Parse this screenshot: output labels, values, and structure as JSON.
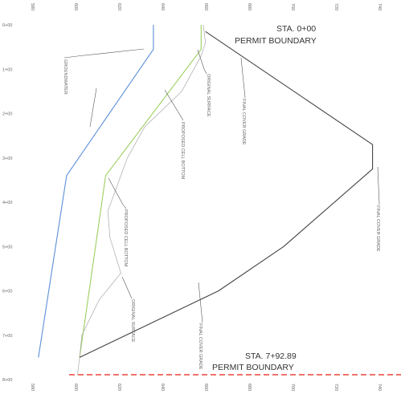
{
  "chart_data": {
    "type": "line",
    "orientation": "rotated-90",
    "elevation_ticks": [
      "580",
      "600",
      "620",
      "640",
      "660",
      "680",
      "700",
      "720",
      "740"
    ],
    "station_ticks": [
      "0+00",
      "1+00",
      "2+00",
      "3+00",
      "4+00",
      "5+00",
      "6+00",
      "7+00",
      "8+00"
    ],
    "elevation_range": [
      580,
      740
    ],
    "station_range": [
      0,
      800
    ],
    "series": [
      {
        "key": "groundwater",
        "color": "#5b8ed8",
        "points": [
          [
            0,
            637
          ],
          [
            55,
            637
          ],
          [
            340,
            597
          ],
          [
            750,
            584
          ]
        ]
      },
      {
        "key": "cell_bottom",
        "color": "#9ccf5e",
        "points": [
          [
            0,
            659
          ],
          [
            55,
            659
          ],
          [
            340,
            615
          ],
          [
            750,
            603
          ]
        ]
      },
      {
        "key": "original_surface",
        "color": "#aaaaaa",
        "points": [
          [
            0,
            660
          ],
          [
            40,
            661
          ],
          [
            70,
            659
          ],
          [
            150,
            650
          ],
          [
            230,
            633
          ],
          [
            300,
            625
          ],
          [
            420,
            616
          ],
          [
            480,
            617
          ],
          [
            560,
            622
          ],
          [
            620,
            612
          ],
          [
            700,
            604
          ],
          [
            750,
            603
          ],
          [
            790,
            602
          ]
        ]
      },
      {
        "key": "final_cover_grade",
        "color": "#444444",
        "points": [
          [
            15,
            661
          ],
          [
            270,
            738
          ],
          [
            325,
            738
          ],
          [
            500,
            697
          ],
          [
            600,
            667
          ],
          [
            750,
            603
          ]
        ]
      }
    ],
    "permit_boundary_color": "#e8453c"
  },
  "annotations": {
    "sta_top": "STA. 0+00",
    "permit_top": "PERMIT BOUNDARY",
    "sta_bottom": "STA. 7+92.89",
    "permit_bottom": "PERMIT BOUNDARY",
    "groundwater": "GROUNDWATER",
    "original_surface_1": "ORIGINAL SURFACE",
    "final_cover_1": "FINAL COVER GRADE",
    "cell_bottom_1": "PROPOSED CELL BOTTOM",
    "final_cover_2": "FINAL COVER GRADE",
    "cell_bottom_2": "PROPOSED CELL BOTTOM",
    "original_surface_2": "ORIGINAL SURFACE",
    "final_cover_3": "FINAL COVER GRADE"
  }
}
